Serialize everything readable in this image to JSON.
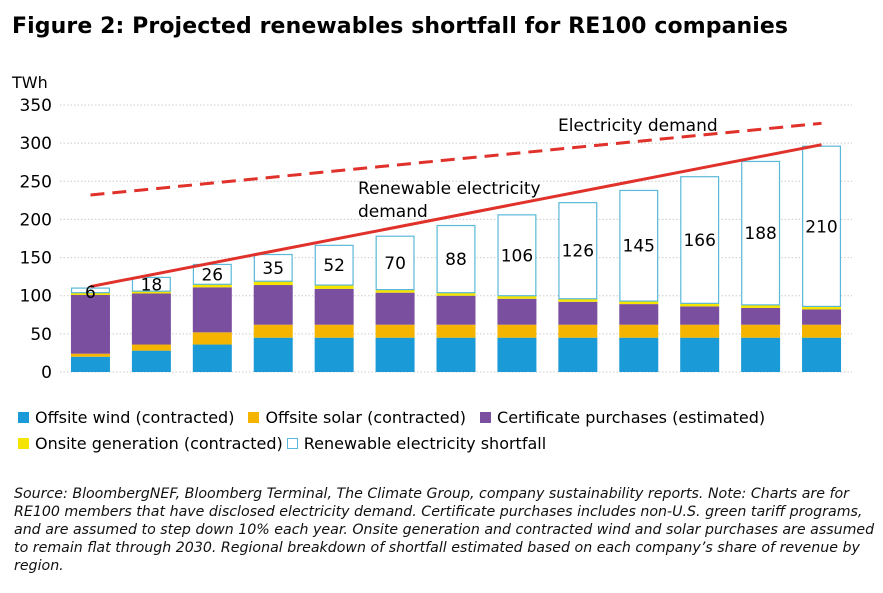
{
  "figure_title": "Figure 2: Projected renewables shortfall for RE100 companies",
  "source_note": "Source: BloombergNEF, Bloomberg Terminal, The Climate Group, company sustainability reports. Note: Charts are for RE100 members that have disclosed electricity demand. Certificate purchases includes non-U.S. green tariff programs, and are assumed to step down 10% each year. Onsite generation and contracted wind and solar purchases are assumed to remain flat through 2030. Regional breakdown of shortfall estimated based on each company’s share of revenue by region.",
  "colors": {
    "offsite_wind": "#1a9ad6",
    "offsite_solar": "#f5b400",
    "certificates": "#7b4fa0",
    "onsite": "#f5e400",
    "shortfall_border": "#5ab8d8",
    "demand_line": "#e0312a",
    "grid": "#cccccc"
  },
  "chart_data": {
    "type": "bar",
    "stacked": true,
    "ylabel": "TWh",
    "ylim": [
      0,
      350
    ],
    "yticks": [
      0,
      50,
      100,
      150,
      200,
      250,
      300,
      350
    ],
    "grid": "horizontal dotted",
    "n_bars": 13,
    "series": [
      {
        "name": "Offsite wind (contracted)",
        "color": "#1a9ad6",
        "values": [
          20,
          28,
          36,
          45,
          45,
          45,
          45,
          45,
          45,
          45,
          45,
          45,
          45
        ]
      },
      {
        "name": "Offsite solar (contracted)",
        "color": "#f5b400",
        "values": [
          4,
          8,
          16,
          17,
          17,
          17,
          17,
          17,
          17,
          17,
          17,
          17,
          17
        ]
      },
      {
        "name": "Certificate purchases (estimated)",
        "color": "#7b4fa0",
        "values": [
          77,
          67,
          59,
          52,
          47,
          42,
          38,
          34,
          30,
          27,
          24,
          22,
          20
        ]
      },
      {
        "name": "Onsite generation (contracted)",
        "color": "#f5e400",
        "values": [
          3,
          3,
          4,
          5,
          5,
          4,
          4,
          4,
          4,
          4,
          4,
          4,
          4
        ]
      },
      {
        "name": "Renewable electricity shortfall",
        "color": "#ffffff",
        "outline": "#5ab8d8",
        "values": [
          6,
          18,
          26,
          35,
          52,
          70,
          88,
          106,
          126,
          145,
          166,
          188,
          210
        ]
      }
    ],
    "shortfall_labels": [
      "6",
      "18",
      "26",
      "35",
      "52",
      "70",
      "88",
      "106",
      "126",
      "145",
      "166",
      "188",
      "210"
    ],
    "lines": [
      {
        "name": "Electricity demand",
        "style": "dashed",
        "color": "#e0312a",
        "start": 232,
        "end": 326
      },
      {
        "name": "Renewable electricity demand",
        "style": "solid",
        "color": "#e0312a",
        "start": 112,
        "end": 298
      }
    ],
    "annotations": [
      "Electricity demand",
      "Renewable electricity",
      "demand"
    ]
  }
}
